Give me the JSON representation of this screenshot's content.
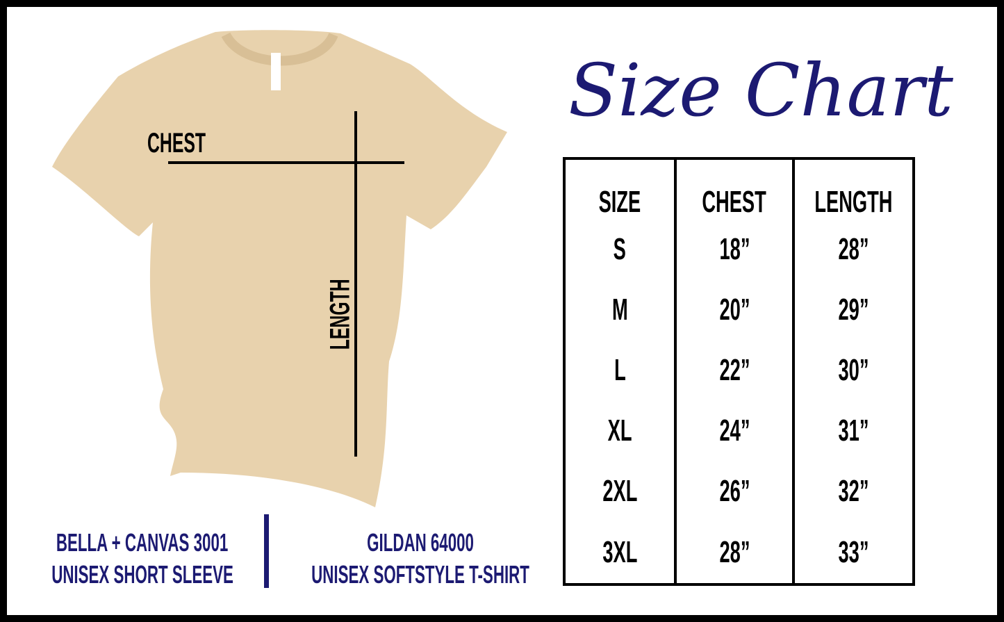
{
  "title": "Size Chart",
  "shirt_labels": {
    "chest": "CHEST",
    "length": "LENGTH"
  },
  "table": {
    "headers": [
      "SIZE",
      "CHEST",
      "LENGTH"
    ],
    "rows": [
      [
        "S",
        "18”",
        "28”"
      ],
      [
        "M",
        "20”",
        "29”"
      ],
      [
        "L",
        "22”",
        "30”"
      ],
      [
        "XL",
        "24”",
        "31”"
      ],
      [
        "2XL",
        "26”",
        "32”"
      ],
      [
        "3XL",
        "28”",
        "33”"
      ]
    ]
  },
  "brands": [
    {
      "line1": "BELLA + CANVAS 3001",
      "line2": "UNISEX SHORT SLEEVE"
    },
    {
      "line1": "GILDAN 64000",
      "line2": "UNISEX SOFTSTYLE T-SHIRT"
    }
  ],
  "colors": {
    "accent": "#1c1a72",
    "shirt": "#e8d2ad"
  }
}
